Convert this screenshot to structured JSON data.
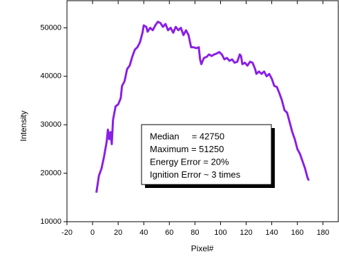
{
  "chart_data": {
    "type": "line",
    "xlabel": "Pixel#",
    "ylabel": "Intensity",
    "xlim": [
      -20,
      192
    ],
    "xticks": [
      -20,
      0,
      20,
      40,
      60,
      80,
      100,
      120,
      140,
      160,
      180
    ],
    "ylim": [
      10000,
      55600
    ],
    "yticks": [
      10000,
      20000,
      30000,
      40000,
      50000
    ],
    "annotation": [
      "Median     = 42750",
      "Maximum = 51250",
      "Energy Error = 20%",
      "Ignition Error ~ 3 times"
    ],
    "series": [
      {
        "color": "#8a1ee6",
        "x": [
          3,
          5,
          7,
          9,
          11,
          12,
          13,
          14,
          15,
          16,
          18,
          20,
          22,
          23,
          25,
          27,
          29,
          31,
          33,
          35,
          37,
          39,
          40,
          42,
          43,
          45,
          47,
          49,
          51,
          53,
          55,
          57,
          59,
          61,
          63,
          65,
          67,
          69,
          71,
          73,
          75,
          77,
          79,
          81,
          83,
          84,
          85,
          87,
          89,
          91,
          93,
          95,
          97,
          99,
          101,
          103,
          105,
          107,
          109,
          111,
          113,
          115,
          116,
          117,
          119,
          121,
          123,
          125,
          127,
          128,
          130,
          132,
          134,
          136,
          138,
          140,
          142,
          144,
          146,
          148,
          150,
          152,
          154,
          156,
          158,
          160,
          162,
          164,
          166,
          168,
          169
        ],
        "values": [
          16000,
          19500,
          21000,
          23500,
          26500,
          29000,
          27000,
          28500,
          26000,
          31000,
          33800,
          34200,
          35500,
          38000,
          39000,
          41500,
          42200,
          44000,
          45500,
          46000,
          47000,
          49000,
          50500,
          50200,
          49200,
          50000,
          49500,
          50500,
          51250,
          51000,
          50200,
          50800,
          49500,
          50000,
          49000,
          50200,
          49500,
          50000,
          48500,
          49500,
          48500,
          46000,
          46000,
          45800,
          46000,
          43500,
          42500,
          43800,
          44000,
          44500,
          44200,
          44500,
          44700,
          45000,
          44500,
          43500,
          43800,
          43200,
          43500,
          42800,
          43000,
          44500,
          44200,
          42500,
          42800,
          42200,
          43000,
          42800,
          41500,
          40500,
          41000,
          40500,
          41000,
          40000,
          40500,
          39500,
          38000,
          37800,
          36500,
          35000,
          33000,
          32500,
          30500,
          28500,
          27000,
          25000,
          24000,
          22500,
          21000,
          19000,
          18500
        ]
      }
    ]
  }
}
